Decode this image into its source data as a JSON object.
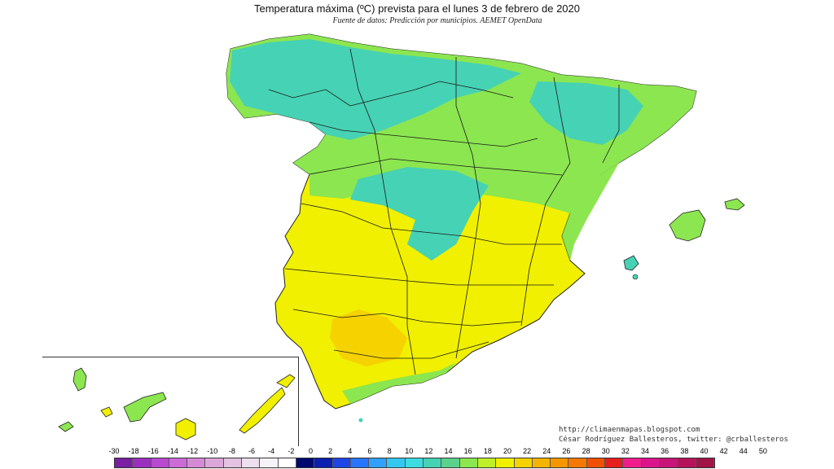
{
  "title": "Temperatura máxima (ºC) prevista para el lunes 3 de febrero de 2020",
  "subtitle": "Fuente de datos: Predicción por municipios. AEMET OpenData",
  "credits": {
    "url": "http://climaenmapas.blogspot.com",
    "author": "César Rodríguez Ballesteros, twitter: @crballesteros"
  },
  "legend": {
    "labels": [
      "-30",
      "-18",
      "-16",
      "-14",
      "-12",
      "-10",
      "-8",
      "-6",
      "-4",
      "-2",
      "0",
      "2",
      "4",
      "6",
      "8",
      "10",
      "12",
      "14",
      "16",
      "18",
      "20",
      "22",
      "24",
      "26",
      "28",
      "30",
      "32",
      "34",
      "36",
      "38",
      "40",
      "42",
      "44",
      "50"
    ],
    "colors": [
      "#7a1fa2",
      "#9b30c0",
      "#b94ad0",
      "#cc6ad6",
      "#d58ad6",
      "#dba7d8",
      "#e4c2e0",
      "#ece0ee",
      "#f6f3f8",
      "#ffffff",
      "#000a6e",
      "#0a1eb0",
      "#1e46e6",
      "#2876ff",
      "#32a0ff",
      "#32c8f0",
      "#3cdce0",
      "#46d2b4",
      "#5ad28c",
      "#8ce650",
      "#beef28",
      "#f0f000",
      "#f5d200",
      "#f5b400",
      "#f59600",
      "#f57800",
      "#f05000",
      "#e61e1e",
      "#f01e8c",
      "#dc148c",
      "#c81478",
      "#b4145a",
      "#a01446"
    ]
  },
  "map_colors": {
    "coast_green": "#8ce650",
    "north_cyan": "#46d2b4",
    "yellow": "#f0f000",
    "orange": "#f5d200",
    "border": "#1a1a1a"
  }
}
